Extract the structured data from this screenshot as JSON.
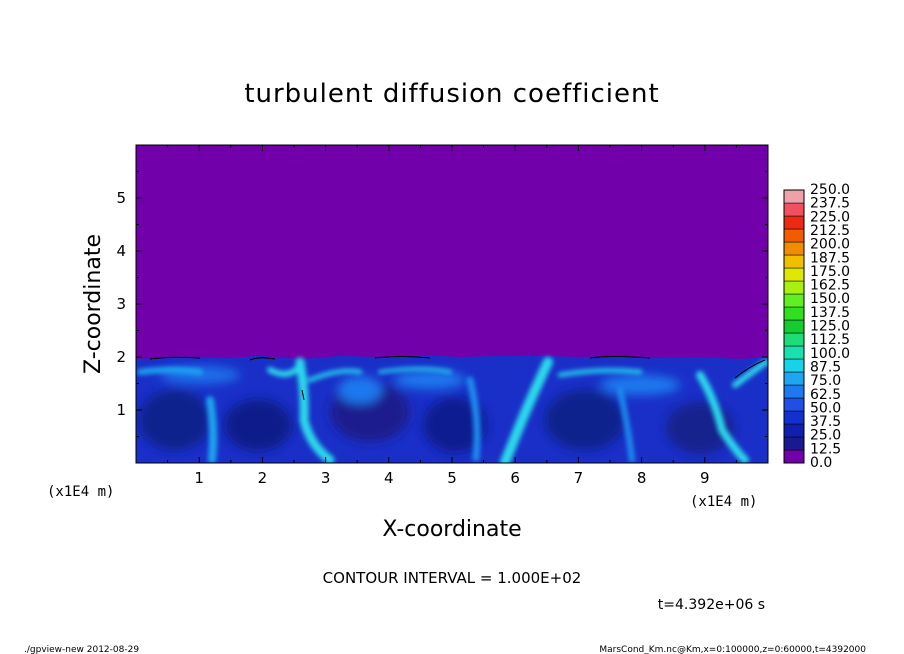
{
  "chart_data": {
    "type": "heatmap",
    "title": "turbulent diffusion coefficient",
    "xlabel": "X-coordinate",
    "ylabel": "Z-coordinate",
    "x_unit_label": "(x1E4 m)",
    "y_unit_label": "(x1E4 m)",
    "xlim": [
      0,
      10
    ],
    "ylim": [
      0,
      6
    ],
    "x_ticks": [
      "1",
      "2",
      "3",
      "4",
      "5",
      "6",
      "7",
      "8",
      "9"
    ],
    "y_ticks": [
      "1",
      "2",
      "3",
      "4",
      "5"
    ],
    "colorbar": {
      "levels": [
        "0.0",
        "12.5",
        "25.0",
        "37.5",
        "50.0",
        "62.5",
        "75.0",
        "87.5",
        "100.0",
        "112.5",
        "125.0",
        "137.5",
        "150.0",
        "162.5",
        "175.0",
        "187.5",
        "200.0",
        "212.5",
        "225.0",
        "237.5",
        "250.0"
      ],
      "colors": [
        "#7100aa",
        "#1a1a90",
        "#0f1fb0",
        "#1030d0",
        "#1e4fe6",
        "#1e78ee",
        "#1ea6f2",
        "#18d2e6",
        "#1ae0b0",
        "#1edc78",
        "#14cc30",
        "#30e020",
        "#60f020",
        "#a8f010",
        "#e0e800",
        "#f0c000",
        "#f08c00",
        "#f05c00",
        "#ec2a14",
        "#f05060",
        "#f0a0a8"
      ]
    },
    "contour_interval": "CONTOUR INTERVAL = 1.000E+02",
    "time_label": "t=4.392e+06 s",
    "background_value_region_top": 2.0,
    "colors": {
      "background": "#7100aa",
      "turbulent_base": "#1a2fc8",
      "plumes": "#28d8e8"
    }
  },
  "footer": {
    "left": "./gpview-new 2012-08-29",
    "right": "MarsCond_Km.nc@Km,x=0:100000,z=0:60000,t=4392000"
  }
}
